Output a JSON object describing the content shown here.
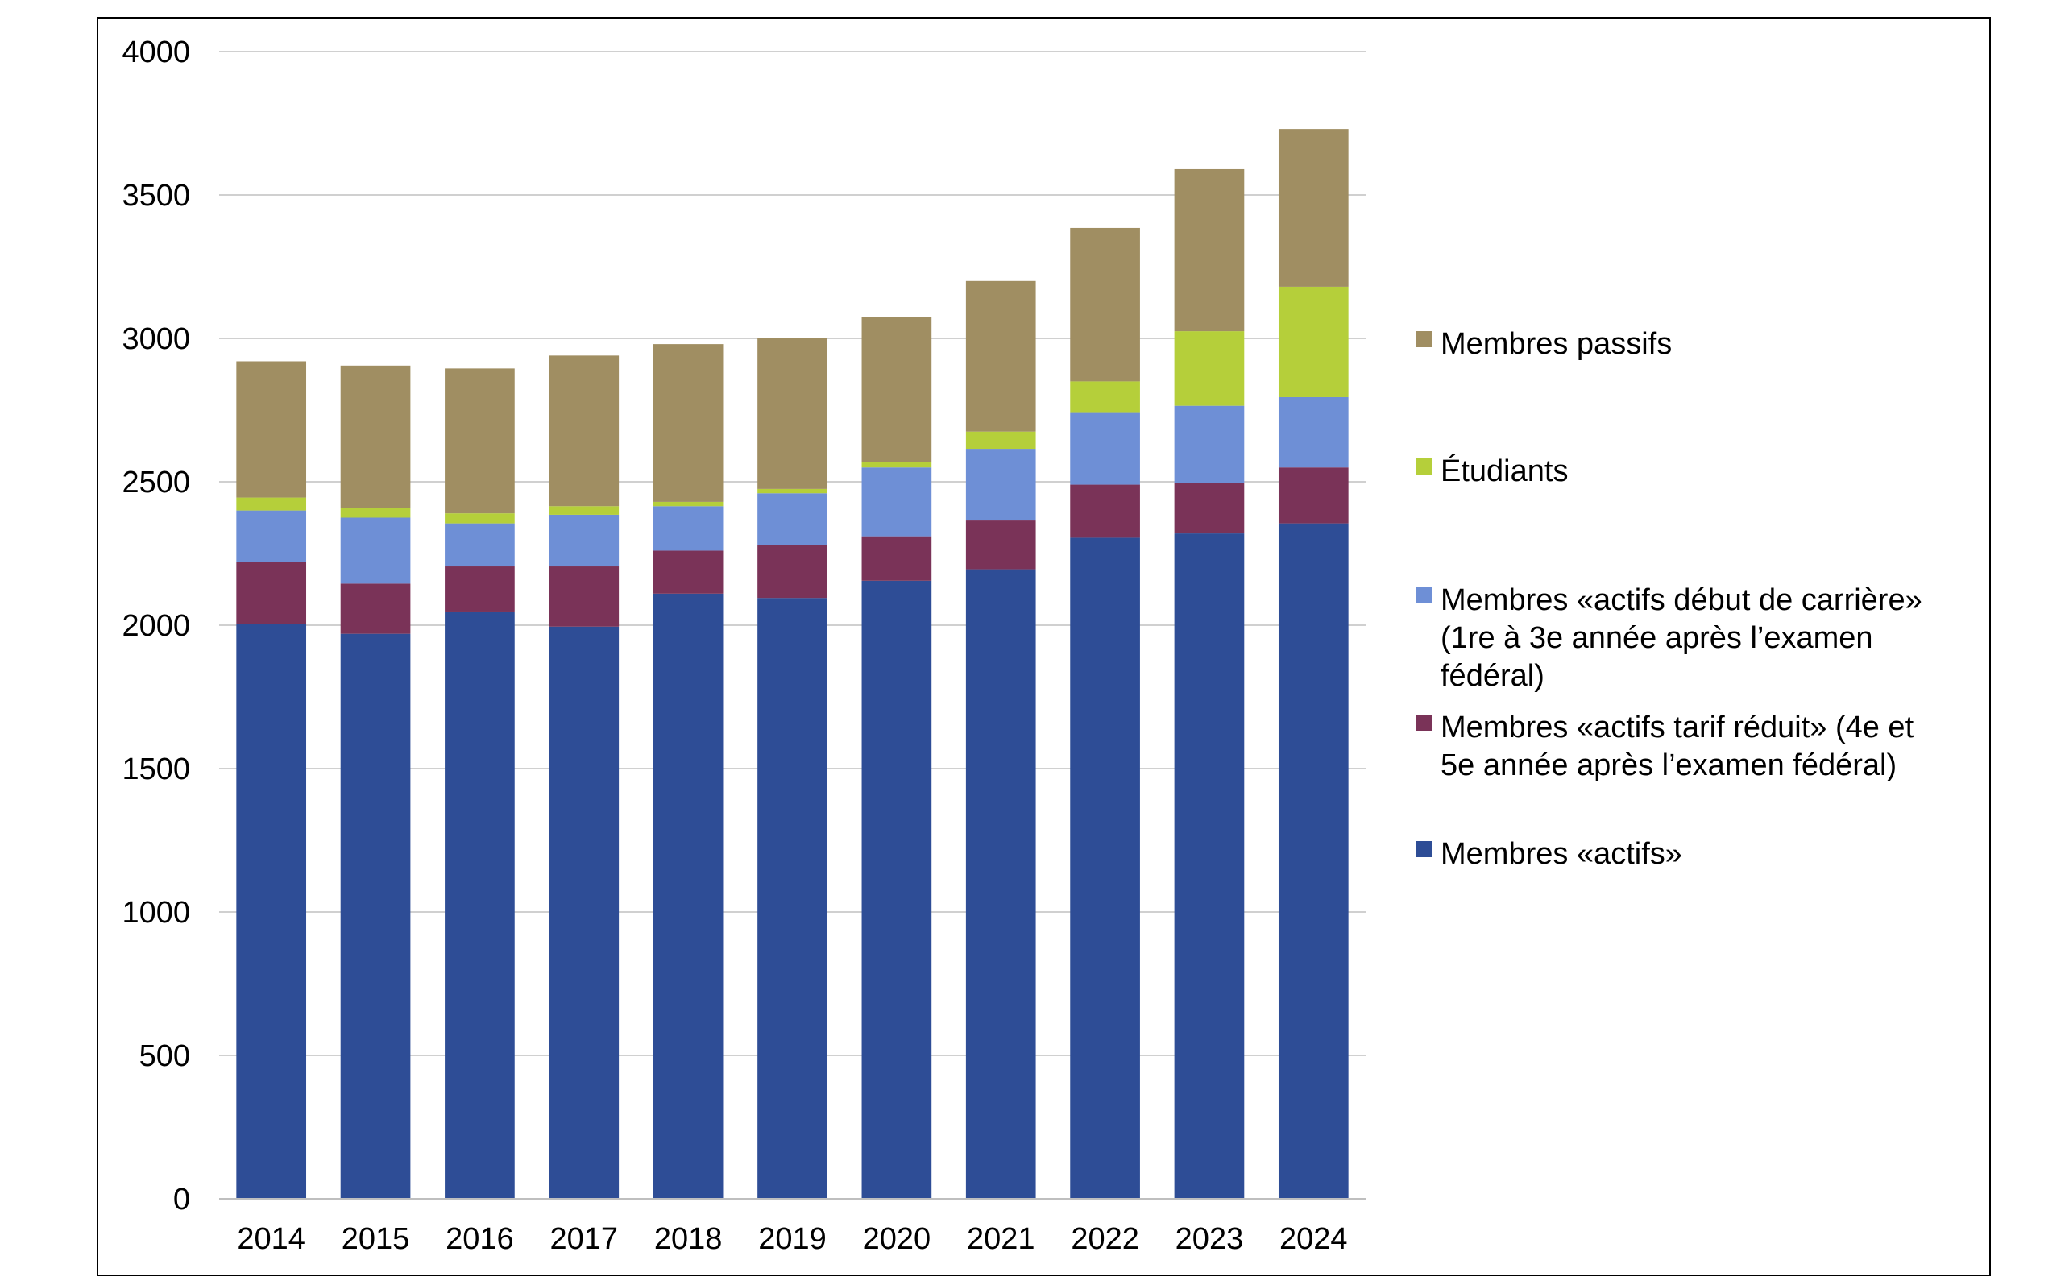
{
  "chart_data": {
    "type": "bar",
    "stacked": true,
    "title": "",
    "xlabel": "",
    "ylabel": "",
    "ylim": [
      0,
      4000
    ],
    "yticks": [
      0,
      500,
      1000,
      1500,
      2000,
      2500,
      3000,
      3500,
      4000
    ],
    "grid": true,
    "legend_position": "right",
    "categories": [
      "2014",
      "2015",
      "2016",
      "2017",
      "2018",
      "2019",
      "2020",
      "2021",
      "2022",
      "2023",
      "2024"
    ],
    "series": [
      {
        "name": "Membres «actifs»",
        "color": "#2e4d96",
        "values": [
          2005,
          1970,
          2045,
          1995,
          2110,
          2095,
          2155,
          2195,
          2305,
          2320,
          2355
        ]
      },
      {
        "name": "Membres «actifs tarif réduit» (4e et 5e année après l’examen fédéral)",
        "color": "#7a3358",
        "values": [
          215,
          175,
          160,
          210,
          150,
          185,
          155,
          170,
          185,
          175,
          195
        ]
      },
      {
        "name": "Membres «actifs début de carrière» (1re à 3e année après l’examen fédéral)",
        "color": "#6e8fd6",
        "values": [
          180,
          230,
          150,
          180,
          155,
          180,
          240,
          250,
          250,
          270,
          245
        ]
      },
      {
        "name": "Étudiants",
        "color": "#b5cf3a",
        "values": [
          45,
          35,
          35,
          30,
          15,
          15,
          20,
          60,
          110,
          260,
          385
        ]
      },
      {
        "name": "Membres passifs",
        "color": "#a08e62",
        "values": [
          475,
          495,
          505,
          525,
          550,
          525,
          505,
          525,
          535,
          565,
          550
        ]
      }
    ],
    "legend": {
      "items": [
        {
          "lines": [
            "Membres passifs"
          ],
          "color": "#a08e62"
        },
        {
          "lines": [
            "Étudiants"
          ],
          "color": "#b5cf3a"
        },
        {
          "lines": [
            "Membres «actifs début de carrière»",
            "(1re à 3e année après l’examen",
            "fédéral)"
          ],
          "color": "#6e8fd6"
        },
        {
          "lines": [
            "Membres «actifs tarif réduit» (4e et",
            "5e année après l’examen fédéral)"
          ],
          "color": "#7a3358"
        },
        {
          "lines": [
            "Membres «actifs»"
          ],
          "color": "#2e4d96"
        }
      ]
    }
  }
}
